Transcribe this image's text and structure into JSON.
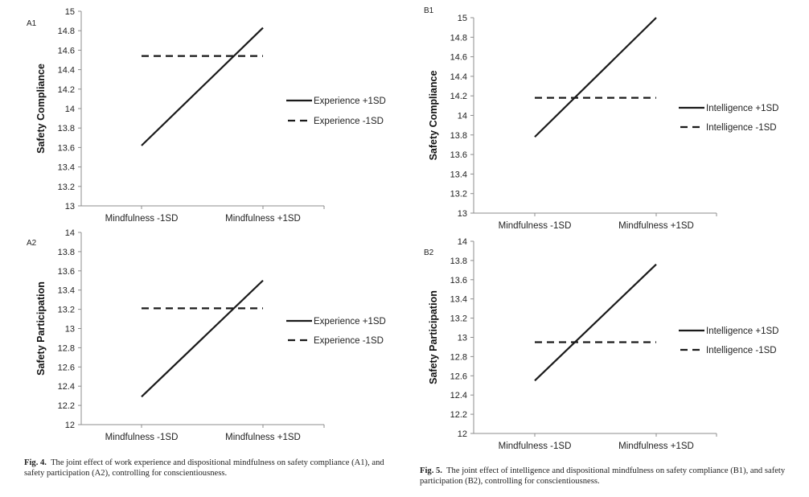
{
  "figures": [
    {
      "id": "fig4",
      "label": "Fig. 4.",
      "caption": "The joint effect of work experience and dispositional mindfulness on safety compliance (A1), and safety participation (A2), controlling for conscientiousness."
    },
    {
      "id": "fig5",
      "label": "Fig. 5.",
      "caption": "The joint effect of intelligence and dispositional mindfulness on safety compliance (B1), and safety participation (B2), controlling for conscientiousness."
    }
  ],
  "chart_data": [
    {
      "panel": "A1",
      "type": "line",
      "title": "",
      "xlabel": "",
      "ylabel": "Safety Compliance",
      "categories": [
        "Mindfulness -1SD",
        "Mindfulness +1SD"
      ],
      "ylim": [
        13,
        15
      ],
      "yticks": [
        "13",
        "13.2",
        "13.4",
        "13.6",
        "13.8",
        "14",
        "14.2",
        "14.4",
        "14.6",
        "14.8",
        "15"
      ],
      "grid": false,
      "legend_position": "right",
      "series": [
        {
          "name": "Experience +1SD",
          "style": "solid",
          "values": [
            13.62,
            14.83
          ]
        },
        {
          "name": "Experience -1SD",
          "style": "dashed",
          "values": [
            14.54,
            14.54
          ]
        }
      ]
    },
    {
      "panel": "A2",
      "type": "line",
      "title": "",
      "xlabel": "",
      "ylabel": "Safety Participation",
      "categories": [
        "Mindfulness -1SD",
        "Mindfulness +1SD"
      ],
      "ylim": [
        12,
        14
      ],
      "yticks": [
        "12",
        "12.2",
        "12.4",
        "12.6",
        "12.8",
        "13",
        "13.2",
        "13.4",
        "13.6",
        "13.8",
        "14"
      ],
      "grid": false,
      "legend_position": "right",
      "series": [
        {
          "name": "Experience +1SD",
          "style": "solid",
          "values": [
            12.29,
            13.5
          ]
        },
        {
          "name": "Experience -1SD",
          "style": "dashed",
          "values": [
            13.21,
            13.21
          ]
        }
      ]
    },
    {
      "panel": "B1",
      "type": "line",
      "title": "",
      "xlabel": "",
      "ylabel": "Safety Compliance",
      "categories": [
        "Mindfulness -1SD",
        "Mindfulness +1SD"
      ],
      "ylim": [
        13,
        15
      ],
      "yticks": [
        "13",
        "13.2",
        "13.4",
        "13.6",
        "13.8",
        "14",
        "14.2",
        "14.4",
        "14.6",
        "14.8",
        "15"
      ],
      "grid": false,
      "legend_position": "right",
      "series": [
        {
          "name": "Intelligence +1SD",
          "style": "solid",
          "values": [
            13.78,
            15.0
          ]
        },
        {
          "name": "Intelligence -1SD",
          "style": "dashed",
          "values": [
            14.18,
            14.18
          ]
        }
      ]
    },
    {
      "panel": "B2",
      "type": "line",
      "title": "",
      "xlabel": "",
      "ylabel": "Safety Participation",
      "categories": [
        "Mindfulness -1SD",
        "Mindfulness +1SD"
      ],
      "ylim": [
        12,
        14
      ],
      "yticks": [
        "12",
        "12.2",
        "12.4",
        "12.6",
        "12.8",
        "13",
        "13.2",
        "13.4",
        "13.6",
        "13.8",
        "14"
      ],
      "grid": false,
      "legend_position": "right",
      "series": [
        {
          "name": "Intelligence +1SD",
          "style": "solid",
          "values": [
            12.55,
            13.76
          ]
        },
        {
          "name": "Intelligence -1SD",
          "style": "dashed",
          "values": [
            12.95,
            12.95
          ]
        }
      ]
    }
  ],
  "colors": {
    "line": "#1a1a1a",
    "axis": "#8c8c8c",
    "text": "#222222"
  }
}
